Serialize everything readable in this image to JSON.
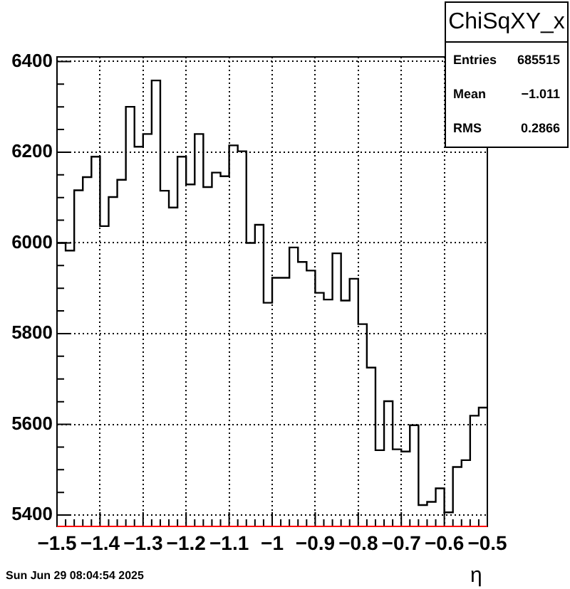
{
  "chart_data": {
    "type": "histogram",
    "title": "ChiSqXY_x",
    "xlabel": "η",
    "bins": [
      -1.5,
      -1.48,
      -1.46,
      -1.44,
      -1.42,
      -1.4,
      -1.38,
      -1.36,
      -1.34,
      -1.32,
      -1.3,
      -1.28,
      -1.26,
      -1.24,
      -1.22,
      -1.2,
      -1.18,
      -1.16,
      -1.14,
      -1.12,
      -1.1,
      -1.08,
      -1.06,
      -1.04,
      -1.02,
      -1.0,
      -0.98,
      -0.96,
      -0.94,
      -0.92,
      -0.9,
      -0.88,
      -0.86,
      -0.84,
      -0.82,
      -0.8,
      -0.78,
      -0.76,
      -0.74,
      -0.72,
      -0.7,
      -0.68,
      -0.66,
      -0.64,
      -0.62,
      -0.6,
      -0.58,
      -0.56,
      -0.54,
      -0.52,
      -0.5
    ],
    "values": [
      6000,
      5983,
      6116,
      6145,
      6190,
      6037,
      6101,
      6139,
      6300,
      6212,
      6240,
      6358,
      6115,
      6078,
      6190,
      6129,
      6240,
      6123,
      6155,
      6147,
      6215,
      6202,
      6000,
      6040,
      5868,
      5923,
      5923,
      5990,
      5958,
      5939,
      5890,
      5875,
      5977,
      5873,
      5921,
      5821,
      5725,
      5543,
      5651,
      5545,
      5540,
      5598,
      5422,
      5429,
      5459,
      5406,
      5506,
      5521,
      5619,
      5637
    ],
    "color": "#000000",
    "xlim": [
      -1.5,
      -0.5
    ],
    "xticks": [
      {
        "value": -1.5,
        "label": "−1.5"
      },
      {
        "value": -1.48,
        "label": null
      },
      {
        "value": -1.46,
        "label": null
      },
      {
        "value": -1.44,
        "label": null
      },
      {
        "value": -1.42,
        "label": null
      },
      {
        "value": -1.4,
        "label": "−1.4"
      },
      {
        "value": -1.38,
        "label": null
      },
      {
        "value": -1.36,
        "label": null
      },
      {
        "value": -1.34,
        "label": null
      },
      {
        "value": -1.32,
        "label": null
      },
      {
        "value": -1.3,
        "label": "−1.3"
      },
      {
        "value": -1.28,
        "label": null
      },
      {
        "value": -1.26,
        "label": null
      },
      {
        "value": -1.24,
        "label": null
      },
      {
        "value": -1.22,
        "label": null
      },
      {
        "value": -1.2,
        "label": "−1.2"
      },
      {
        "value": -1.18,
        "label": null
      },
      {
        "value": -1.16,
        "label": null
      },
      {
        "value": -1.14,
        "label": null
      },
      {
        "value": -1.12,
        "label": null
      },
      {
        "value": -1.1,
        "label": "−1.1"
      },
      {
        "value": -1.08,
        "label": null
      },
      {
        "value": -1.06,
        "label": null
      },
      {
        "value": -1.04,
        "label": null
      },
      {
        "value": -1.02,
        "label": null
      },
      {
        "value": -1.0,
        "label": "−1"
      },
      {
        "value": -0.98,
        "label": null
      },
      {
        "value": -0.96,
        "label": null
      },
      {
        "value": -0.94,
        "label": null
      },
      {
        "value": -0.92,
        "label": null
      },
      {
        "value": -0.9,
        "label": "−0.9"
      },
      {
        "value": -0.88,
        "label": null
      },
      {
        "value": -0.86,
        "label": null
      },
      {
        "value": -0.84,
        "label": null
      },
      {
        "value": -0.82,
        "label": null
      },
      {
        "value": -0.8,
        "label": "−0.8"
      },
      {
        "value": -0.78,
        "label": null
      },
      {
        "value": -0.76,
        "label": null
      },
      {
        "value": -0.74,
        "label": null
      },
      {
        "value": -0.72,
        "label": null
      },
      {
        "value": -0.7,
        "label": "−0.7"
      },
      {
        "value": -0.68,
        "label": null
      },
      {
        "value": -0.66,
        "label": null
      },
      {
        "value": -0.64,
        "label": null
      },
      {
        "value": -0.62,
        "label": null
      },
      {
        "value": -0.6,
        "label": "−0.6"
      },
      {
        "value": -0.58,
        "label": null
      },
      {
        "value": -0.56,
        "label": null
      },
      {
        "value": -0.54,
        "label": null
      },
      {
        "value": -0.52,
        "label": null
      },
      {
        "value": -0.5,
        "label": "−0.5"
      }
    ],
    "ylim": [
      5375,
      6410
    ],
    "yticks": [
      5400,
      {
        "value": 5450,
        "label": null
      },
      {
        "value": 5500,
        "label": null
      },
      {
        "value": 5550,
        "label": null
      },
      5600,
      {
        "value": 5650,
        "label": null
      },
      {
        "value": 5700,
        "label": null
      },
      {
        "value": 5750,
        "label": null
      },
      5800,
      {
        "value": 5850,
        "label": null
      },
      {
        "value": 5900,
        "label": null
      },
      {
        "value": 5950,
        "label": null
      },
      6000,
      {
        "value": 6050,
        "label": null
      },
      {
        "value": 6100,
        "label": null
      },
      {
        "value": 6150,
        "label": null
      },
      6200,
      {
        "value": 6250,
        "label": null
      },
      {
        "value": 6300,
        "label": null
      },
      {
        "value": 6350,
        "label": null
      },
      6400
    ],
    "grid": true,
    "legend": false,
    "annotations": [
      "Entries",
      "685515",
      "Mean",
      "−1.011",
      "RMS",
      "0.2866",
      "Sun Jun 29 08:04:54 2025"
    ]
  }
}
